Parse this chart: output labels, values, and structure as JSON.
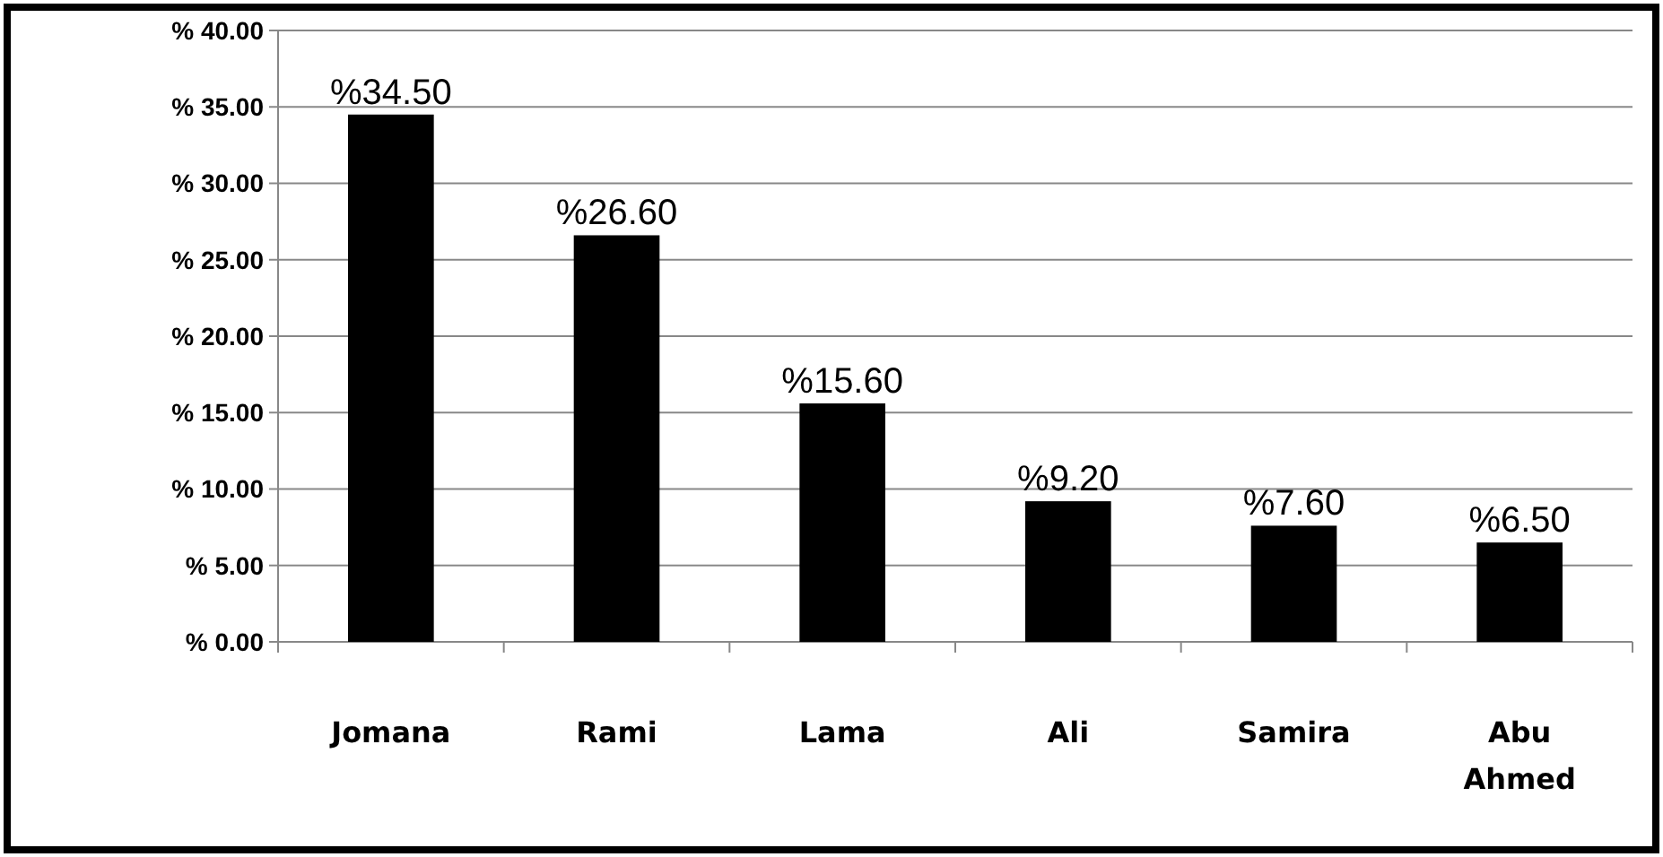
{
  "chart_data": {
    "type": "bar",
    "categories": [
      "Jomana",
      "Rami",
      "Lama",
      "Ali",
      "Samira",
      "Abu Ahmed"
    ],
    "values": [
      34.5,
      26.6,
      15.6,
      9.2,
      7.6,
      6.5
    ],
    "value_labels": [
      "%34.50",
      "%26.60",
      "%15.60",
      "%9.20",
      "%7.60",
      "%6.50"
    ],
    "color": "#000000",
    "ylim": [
      0,
      40
    ],
    "yticks": [
      {
        "value": 0,
        "label": "% 0.00"
      },
      {
        "value": 5,
        "label": "% 5.00"
      },
      {
        "value": 10,
        "label": "% 10.00"
      },
      {
        "value": 15,
        "label": "% 15.00"
      },
      {
        "value": 20,
        "label": "% 20.00"
      },
      {
        "value": 25,
        "label": "% 25.00"
      },
      {
        "value": 30,
        "label": "% 30.00"
      },
      {
        "value": 35,
        "label": "% 35.00"
      },
      {
        "value": 40,
        "label": "% 40.00"
      }
    ],
    "grid": "y"
  }
}
